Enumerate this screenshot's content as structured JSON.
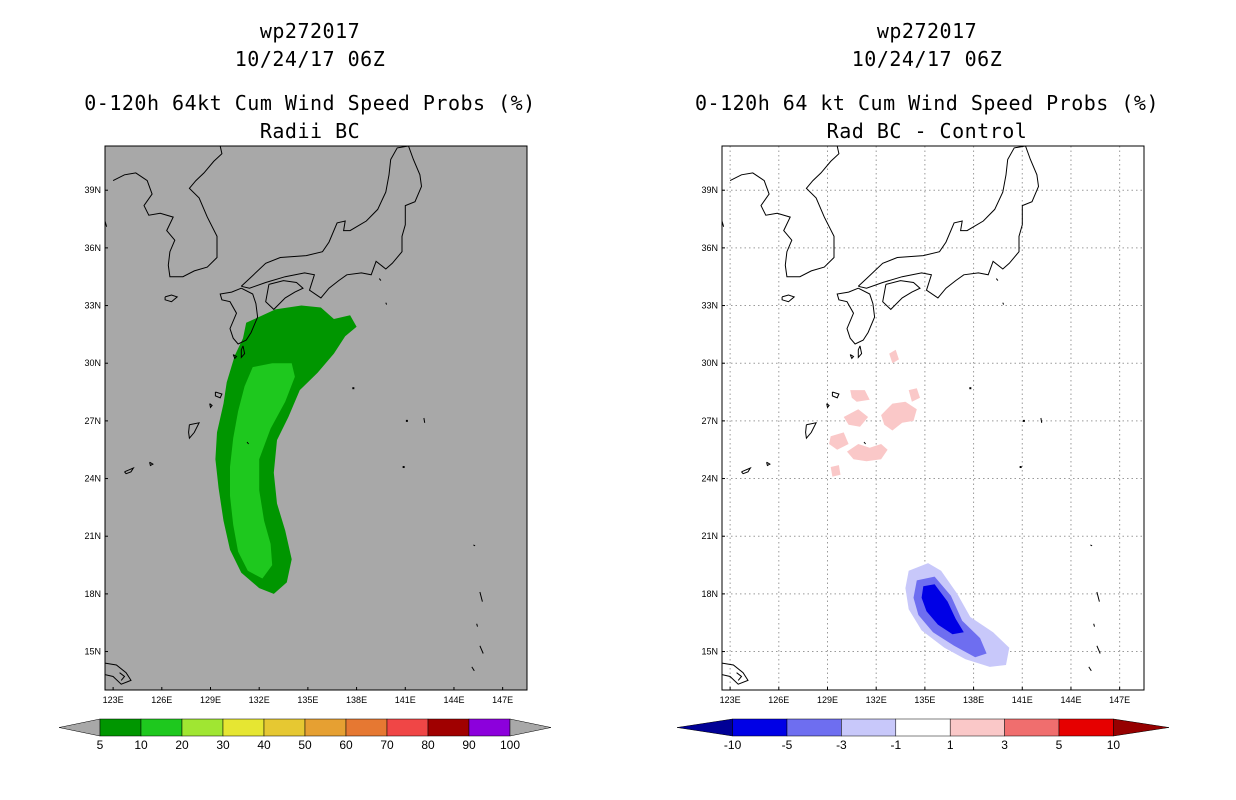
{
  "left_panel": {
    "storm_id": "wp272017",
    "datetime": "10/24/17 06Z",
    "title": "0-120h 64kt Cum Wind Speed Probs (%)",
    "subtitle": "Radii BC"
  },
  "right_panel": {
    "storm_id": "wp272017",
    "datetime": "10/24/17 06Z",
    "title": "0-120h 64 kt Cum Wind Speed Probs (%)",
    "subtitle": "Rad BC - Control"
  },
  "chart_data": [
    {
      "type": "heatmap",
      "name": "Radii BC",
      "xlim": [
        122.5,
        148.5
      ],
      "ylim": [
        13,
        41.3
      ],
      "x_ticks": [
        123,
        126,
        129,
        132,
        135,
        138,
        141,
        144,
        147
      ],
      "x_tick_labels": [
        "123E",
        "126E",
        "129E",
        "132E",
        "135E",
        "138E",
        "141E",
        "144E",
        "147E"
      ],
      "y_ticks": [
        15,
        18,
        21,
        24,
        27,
        30,
        33,
        36,
        39
      ],
      "y_tick_labels": [
        "15N",
        "18N",
        "21N",
        "24N",
        "27N",
        "30N",
        "33N",
        "36N",
        "39N"
      ],
      "background": "#a8a8a8",
      "grid": false,
      "colorbar": {
        "labels": [
          "5",
          "10",
          "20",
          "30",
          "40",
          "50",
          "60",
          "70",
          "80",
          "90",
          "100"
        ],
        "colors": [
          "#009600",
          "#1ec81e",
          "#a0e632",
          "#e6e632",
          "#e6c832",
          "#e6a032",
          "#e67832",
          "#f04646",
          "#a00000",
          "#8c00dc"
        ],
        "under_color": "#a8a8a8",
        "over_color": "#a8a8a8"
      },
      "contours": [
        {
          "level": "5-10",
          "color": "#009600",
          "polygon": [
            [
              131.2,
              32.1
            ],
            [
              133.0,
              32.8
            ],
            [
              134.6,
              33.0
            ],
            [
              135.8,
              32.9
            ],
            [
              136.6,
              32.3
            ],
            [
              137.6,
              32.5
            ],
            [
              138.0,
              31.9
            ],
            [
              137.3,
              31.4
            ],
            [
              136.6,
              30.5
            ],
            [
              135.6,
              29.5
            ],
            [
              134.5,
              28.6
            ],
            [
              133.8,
              27.2
            ],
            [
              133.1,
              26.0
            ],
            [
              132.9,
              24.3
            ],
            [
              133.1,
              22.7
            ],
            [
              133.6,
              21.3
            ],
            [
              134.0,
              19.8
            ],
            [
              133.7,
              18.6
            ],
            [
              132.9,
              18.0
            ],
            [
              132.0,
              18.3
            ],
            [
              130.9,
              19.1
            ],
            [
              130.2,
              20.3
            ],
            [
              129.8,
              21.8
            ],
            [
              129.5,
              23.5
            ],
            [
              129.3,
              25.0
            ],
            [
              129.4,
              26.4
            ],
            [
              129.8,
              27.9
            ],
            [
              130.0,
              29.0
            ],
            [
              130.5,
              30.4
            ],
            [
              131.0,
              31.3
            ]
          ]
        },
        {
          "level": "10-20",
          "color": "#1ec81e",
          "polygon": [
            [
              131.6,
              29.8
            ],
            [
              132.8,
              30.0
            ],
            [
              134.0,
              30.0
            ],
            [
              134.2,
              29.3
            ],
            [
              133.6,
              28.0
            ],
            [
              132.7,
              26.6
            ],
            [
              132.0,
              25.0
            ],
            [
              132.0,
              23.4
            ],
            [
              132.3,
              21.8
            ],
            [
              132.7,
              20.6
            ],
            [
              132.8,
              19.5
            ],
            [
              132.2,
              18.8
            ],
            [
              131.3,
              19.2
            ],
            [
              130.7,
              20.2
            ],
            [
              130.4,
              21.6
            ],
            [
              130.2,
              23.1
            ],
            [
              130.2,
              24.6
            ],
            [
              130.4,
              26.1
            ],
            [
              130.7,
              27.5
            ],
            [
              131.1,
              28.8
            ]
          ]
        }
      ]
    },
    {
      "type": "heatmap",
      "name": "Rad BC - Control",
      "xlim": [
        122.5,
        148.5
      ],
      "ylim": [
        13,
        41.3
      ],
      "x_ticks": [
        123,
        126,
        129,
        132,
        135,
        138,
        141,
        144,
        147
      ],
      "x_tick_labels": [
        "123E",
        "126E",
        "129E",
        "132E",
        "135E",
        "138E",
        "141E",
        "144E",
        "147E"
      ],
      "y_ticks": [
        15,
        18,
        21,
        24,
        27,
        30,
        33,
        36,
        39
      ],
      "y_tick_labels": [
        "15N",
        "18N",
        "21N",
        "24N",
        "27N",
        "30N",
        "33N",
        "36N",
        "39N"
      ],
      "background": "#ffffff",
      "grid": true,
      "colorbar": {
        "labels": [
          "-10",
          "-5",
          "-3",
          "-1",
          "1",
          "3",
          "5",
          "10"
        ],
        "colors": [
          "#0000e6",
          "#6e6ef0",
          "#c8c8fa",
          "#ffffff",
          "#fac8c8",
          "#f06e6e",
          "#e60000"
        ],
        "under_color": "#000096",
        "over_color": "#960000"
      },
      "contours": [
        {
          "level": "-3 to -1",
          "color": "#c8c8fa",
          "polygon": [
            [
              134.0,
              19.2
            ],
            [
              135.2,
              19.6
            ],
            [
              136.0,
              19.2
            ],
            [
              137.0,
              18.0
            ],
            [
              137.8,
              16.8
            ],
            [
              139.2,
              16.0
            ],
            [
              140.2,
              15.2
            ],
            [
              140.0,
              14.3
            ],
            [
              139.0,
              14.2
            ],
            [
              137.5,
              14.6
            ],
            [
              136.2,
              15.2
            ],
            [
              134.8,
              16.1
            ],
            [
              134.0,
              17.2
            ],
            [
              133.8,
              18.3
            ]
          ]
        },
        {
          "level": "-5 to -3",
          "color": "#6e6ef0",
          "polygon": [
            [
              134.5,
              18.7
            ],
            [
              135.6,
              18.9
            ],
            [
              136.6,
              17.9
            ],
            [
              137.3,
              16.6
            ],
            [
              138.4,
              15.7
            ],
            [
              138.8,
              14.9
            ],
            [
              138.1,
              14.7
            ],
            [
              136.8,
              15.3
            ],
            [
              135.5,
              16.0
            ],
            [
              134.6,
              16.9
            ],
            [
              134.3,
              17.8
            ]
          ]
        },
        {
          "level": "-10 to -5",
          "color": "#0000e6",
          "polygon": [
            [
              134.9,
              18.4
            ],
            [
              135.6,
              18.5
            ],
            [
              136.4,
              17.6
            ],
            [
              136.9,
              16.7
            ],
            [
              137.4,
              16.0
            ],
            [
              136.7,
              15.9
            ],
            [
              135.8,
              16.4
            ],
            [
              135.1,
              17.1
            ],
            [
              134.8,
              17.8
            ]
          ]
        },
        {
          "level": "1-3 a",
          "color": "#fac8c8",
          "polygon": [
            [
              132.8,
              30.5
            ],
            [
              133.2,
              30.7
            ],
            [
              133.4,
              30.2
            ],
            [
              133.0,
              30.0
            ]
          ]
        },
        {
          "level": "1-3 b",
          "color": "#fac8c8",
          "polygon": [
            [
              130.4,
              28.6
            ],
            [
              131.3,
              28.6
            ],
            [
              131.6,
              28.1
            ],
            [
              130.8,
              28.0
            ],
            [
              130.5,
              28.2
            ]
          ]
        },
        {
          "level": "1-3 c",
          "color": "#fac8c8",
          "polygon": [
            [
              134.0,
              28.6
            ],
            [
              134.5,
              28.7
            ],
            [
              134.7,
              28.2
            ],
            [
              134.2,
              28.0
            ]
          ]
        },
        {
          "level": "1-3 d",
          "color": "#fac8c8",
          "polygon": [
            [
              130.0,
              27.2
            ],
            [
              130.9,
              27.6
            ],
            [
              131.5,
              27.2
            ],
            [
              131.0,
              26.7
            ],
            [
              130.3,
              26.8
            ]
          ]
        },
        {
          "level": "1-3 e",
          "color": "#fac8c8",
          "polygon": [
            [
              132.3,
              27.3
            ],
            [
              133.0,
              27.9
            ],
            [
              133.8,
              28.0
            ],
            [
              134.5,
              27.6
            ],
            [
              134.3,
              27.0
            ],
            [
              133.6,
              26.9
            ],
            [
              133.0,
              26.5
            ],
            [
              132.5,
              26.8
            ]
          ]
        },
        {
          "level": "1-3 f",
          "color": "#fac8c8",
          "polygon": [
            [
              129.2,
              26.2
            ],
            [
              130.0,
              26.4
            ],
            [
              130.3,
              25.8
            ],
            [
              129.6,
              25.5
            ],
            [
              129.1,
              25.8
            ]
          ]
        },
        {
          "level": "1-3 g",
          "color": "#fac8c8",
          "polygon": [
            [
              130.2,
              25.4
            ],
            [
              130.9,
              25.8
            ],
            [
              131.6,
              25.6
            ],
            [
              132.3,
              25.8
            ],
            [
              132.7,
              25.5
            ],
            [
              132.3,
              25.0
            ],
            [
              131.4,
              24.9
            ],
            [
              130.6,
              25.0
            ]
          ]
        },
        {
          "level": "1-3 h",
          "color": "#fac8c8",
          "polygon": [
            [
              129.2,
              24.6
            ],
            [
              129.7,
              24.7
            ],
            [
              129.8,
              24.2
            ],
            [
              129.3,
              24.1
            ]
          ]
        }
      ]
    }
  ]
}
